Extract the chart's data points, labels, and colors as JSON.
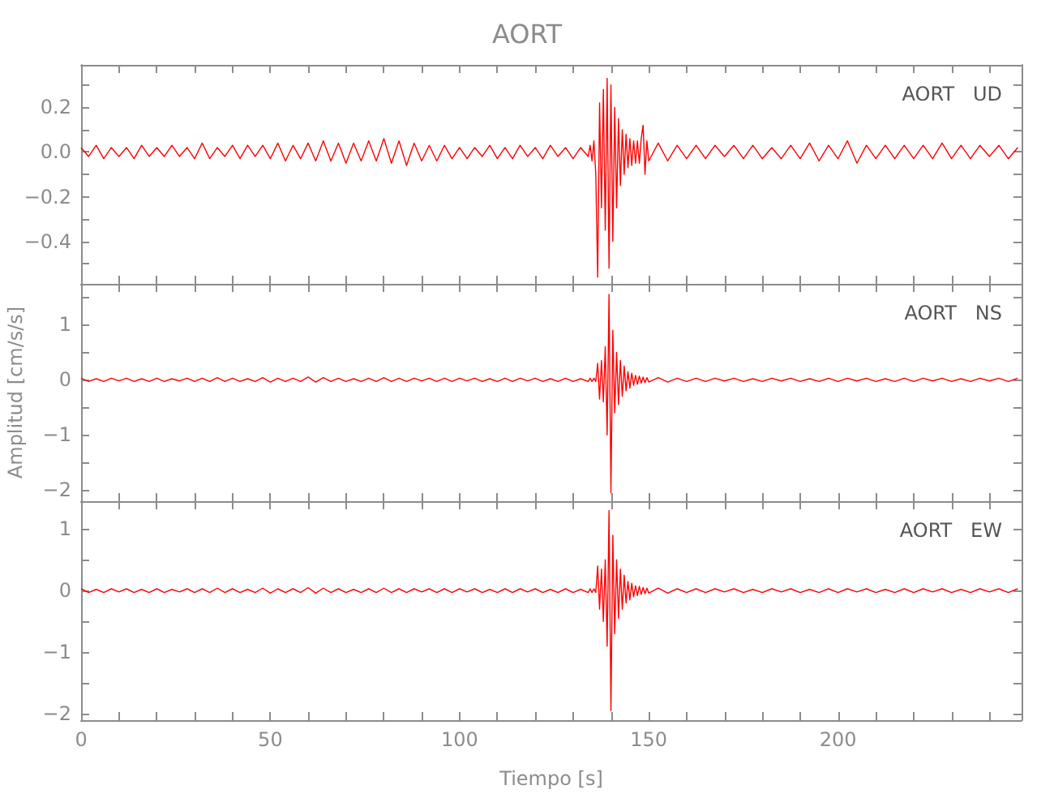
{
  "chart_data": [
    {
      "type": "line",
      "title": "AORT",
      "annotations": [
        "AORT   UD"
      ],
      "tick_labels": "y",
      "xlim": [
        0,
        248.5
      ],
      "xticks": [
        {
          "value": 0,
          "label": null
        },
        {
          "value": 10,
          "label": null
        },
        {
          "value": 20,
          "label": null
        },
        {
          "value": 30,
          "label": null
        },
        {
          "value": 40,
          "label": null
        },
        {
          "value": 50,
          "label": null
        },
        {
          "value": 60,
          "label": null
        },
        {
          "value": 70,
          "label": null
        },
        {
          "value": 80,
          "label": null
        },
        {
          "value": 90,
          "label": null
        },
        {
          "value": 100,
          "label": null
        },
        {
          "value": 110,
          "label": null
        },
        {
          "value": 120,
          "label": null
        },
        {
          "value": 130,
          "label": null
        },
        {
          "value": 140,
          "label": null
        },
        {
          "value": 150,
          "label": null
        },
        {
          "value": 160,
          "label": null
        },
        {
          "value": 170,
          "label": null
        },
        {
          "value": 180,
          "label": null
        },
        {
          "value": 190,
          "label": null
        },
        {
          "value": 200,
          "label": null
        },
        {
          "value": 210,
          "label": null
        },
        {
          "value": 220,
          "label": null
        },
        {
          "value": 230,
          "label": null
        },
        {
          "value": 240,
          "label": null
        }
      ],
      "ylim": [
        -0.59,
        0.39
      ],
      "yticks": [
        {
          "value": -0.5,
          "label": null
        },
        {
          "value": -0.4,
          "label": "−0.4"
        },
        {
          "value": -0.3,
          "label": null
        },
        {
          "value": -0.2,
          "label": "−0.2"
        },
        {
          "value": -0.1,
          "label": null
        },
        {
          "value": 0,
          "label": "0.0"
        },
        {
          "value": 0.1,
          "label": null
        },
        {
          "value": 0.2,
          "label": "0.2"
        },
        {
          "value": 0.3,
          "label": null
        }
      ],
      "x": [
        0,
        2,
        4,
        6,
        8,
        10,
        12,
        14,
        16,
        18,
        20,
        22,
        24,
        26,
        28,
        30,
        32,
        34,
        36,
        38,
        40,
        42,
        44,
        46,
        48,
        50,
        52,
        54,
        56,
        58,
        60,
        62,
        64,
        66,
        68,
        70,
        72,
        74,
        76,
        78,
        80,
        82,
        84,
        86,
        88,
        90,
        92,
        94,
        96,
        98,
        100,
        102,
        104,
        106,
        108,
        110,
        112,
        114,
        116,
        118,
        120,
        122,
        124,
        126,
        128,
        130,
        132,
        134,
        134.5,
        135,
        135.5,
        136,
        136.5,
        137,
        137.5,
        138,
        138.5,
        139,
        139.5,
        140,
        140.5,
        141,
        141.5,
        142,
        142.5,
        143,
        143.5,
        144,
        144.5,
        145,
        145.5,
        146,
        146.5,
        147,
        147.5,
        148,
        148.5,
        149,
        149.5,
        150,
        152.5,
        155,
        157.5,
        160,
        162.5,
        165,
        167.5,
        170,
        172.5,
        175,
        177.5,
        180,
        182.5,
        185,
        187.5,
        190,
        192.5,
        195,
        197.5,
        200,
        202.5,
        205,
        207.5,
        210,
        212.5,
        215,
        217.5,
        220,
        222.5,
        225,
        227.5,
        230,
        232.5,
        235,
        237.5,
        240,
        242.5,
        245,
        247.5
      ],
      "series": [
        {
          "color": "#ff0000",
          "values": [
            0.02,
            -0.02,
            0.03,
            -0.03,
            0.02,
            -0.02,
            0.02,
            -0.03,
            0.03,
            -0.02,
            0.02,
            -0.02,
            0.03,
            -0.02,
            0.02,
            -0.03,
            0.04,
            -0.03,
            0.02,
            -0.02,
            0.03,
            -0.03,
            0.03,
            -0.02,
            0.03,
            -0.03,
            0.04,
            -0.04,
            0.03,
            -0.03,
            0.04,
            -0.04,
            0.05,
            -0.04,
            0.04,
            -0.05,
            0.04,
            -0.04,
            0.05,
            -0.04,
            0.06,
            -0.05,
            0.05,
            -0.06,
            0.04,
            -0.04,
            0.03,
            -0.04,
            0.03,
            -0.03,
            0.02,
            -0.03,
            0.02,
            -0.02,
            0.03,
            -0.03,
            0.02,
            -0.03,
            0.03,
            -0.02,
            0.02,
            -0.03,
            0.03,
            -0.02,
            0.02,
            -0.03,
            0.02,
            -0.02,
            0.03,
            -0.04,
            0.05,
            -0.1,
            -0.56,
            0.22,
            -0.25,
            0.28,
            -0.35,
            0.33,
            -0.52,
            0.3,
            -0.4,
            0.2,
            -0.25,
            0.15,
            -0.15,
            0.1,
            -0.1,
            0.08,
            -0.07,
            0.06,
            -0.06,
            0.05,
            -0.05,
            0.05,
            -0.05,
            0.06,
            0.12,
            -0.1,
            0.05,
            -0.04,
            0.04,
            -0.04,
            0.03,
            -0.03,
            0.03,
            -0.03,
            0.03,
            -0.02,
            0.03,
            -0.03,
            0.03,
            -0.03,
            0.02,
            -0.03,
            0.03,
            -0.03,
            0.04,
            -0.04,
            0.03,
            -0.03,
            0.05,
            -0.05,
            0.03,
            -0.03,
            0.03,
            -0.03,
            0.03,
            -0.03,
            0.03,
            -0.03,
            0.04,
            -0.03,
            0.03,
            -0.03,
            0.03,
            -0.02,
            0.03,
            -0.03,
            0.02
          ]
        }
      ]
    },
    {
      "type": "line",
      "ylabel": "Amplitud [cm/s/s]",
      "annotations": [
        "AORT   NS"
      ],
      "tick_labels": "y",
      "xlim": [
        0,
        248.5
      ],
      "xticks": [
        {
          "value": 0,
          "label": null
        },
        {
          "value": 10,
          "label": null
        },
        {
          "value": 20,
          "label": null
        },
        {
          "value": 30,
          "label": null
        },
        {
          "value": 40,
          "label": null
        },
        {
          "value": 50,
          "label": null
        },
        {
          "value": 60,
          "label": null
        },
        {
          "value": 70,
          "label": null
        },
        {
          "value": 80,
          "label": null
        },
        {
          "value": 90,
          "label": null
        },
        {
          "value": 100,
          "label": null
        },
        {
          "value": 110,
          "label": null
        },
        {
          "value": 120,
          "label": null
        },
        {
          "value": 130,
          "label": null
        },
        {
          "value": 140,
          "label": null
        },
        {
          "value": 150,
          "label": null
        },
        {
          "value": 160,
          "label": null
        },
        {
          "value": 170,
          "label": null
        },
        {
          "value": 180,
          "label": null
        },
        {
          "value": 190,
          "label": null
        },
        {
          "value": 200,
          "label": null
        },
        {
          "value": 210,
          "label": null
        },
        {
          "value": 220,
          "label": null
        },
        {
          "value": 230,
          "label": null
        },
        {
          "value": 240,
          "label": null
        }
      ],
      "ylim": [
        -2.2,
        1.74
      ],
      "yticks": [
        {
          "value": -2,
          "label": "−2"
        },
        {
          "value": -1.5,
          "label": null
        },
        {
          "value": -1,
          "label": "−1"
        },
        {
          "value": -0.5,
          "label": null
        },
        {
          "value": 0,
          "label": "0"
        },
        {
          "value": 0.5,
          "label": null
        },
        {
          "value": 1,
          "label": "1"
        },
        {
          "value": 1.5,
          "label": null
        }
      ],
      "x": [
        0,
        2,
        4,
        6,
        8,
        10,
        12,
        14,
        16,
        18,
        20,
        22,
        24,
        26,
        28,
        30,
        32,
        34,
        36,
        38,
        40,
        42,
        44,
        46,
        48,
        50,
        52,
        54,
        56,
        58,
        60,
        62,
        64,
        66,
        68,
        70,
        72,
        74,
        76,
        78,
        80,
        82,
        84,
        86,
        88,
        90,
        92,
        94,
        96,
        98,
        100,
        102,
        104,
        106,
        108,
        110,
        112,
        114,
        116,
        118,
        120,
        122,
        124,
        126,
        128,
        130,
        132,
        134,
        134.5,
        135,
        135.5,
        136,
        136.5,
        137,
        137.5,
        138,
        138.5,
        139,
        139.5,
        140,
        140.5,
        141,
        141.5,
        142,
        142.5,
        143,
        143.5,
        144,
        144.5,
        145,
        145.5,
        146,
        146.5,
        147,
        147.5,
        148,
        148.5,
        149,
        149.5,
        150,
        152.5,
        155,
        157.5,
        160,
        162.5,
        165,
        167.5,
        170,
        172.5,
        175,
        177.5,
        180,
        182.5,
        185,
        187.5,
        190,
        192.5,
        195,
        197.5,
        200,
        202.5,
        205,
        207.5,
        210,
        212.5,
        215,
        217.5,
        220,
        222.5,
        225,
        227.5,
        230,
        232.5,
        235,
        237.5,
        240,
        242.5,
        245,
        247.5
      ],
      "series": [
        {
          "color": "#ff0000",
          "values": [
            0.03,
            -0.03,
            0.02,
            -0.03,
            0.03,
            -0.02,
            0.03,
            -0.03,
            0.02,
            -0.03,
            0.03,
            -0.03,
            0.02,
            -0.02,
            0.03,
            -0.03,
            0.03,
            -0.03,
            0.04,
            -0.03,
            0.03,
            -0.03,
            0.02,
            -0.03,
            0.04,
            -0.04,
            0.03,
            -0.03,
            0.03,
            -0.03,
            0.05,
            -0.04,
            0.04,
            -0.03,
            0.03,
            -0.03,
            0.02,
            -0.03,
            0.03,
            -0.03,
            0.04,
            -0.03,
            0.03,
            -0.03,
            0.03,
            -0.02,
            0.03,
            -0.03,
            0.03,
            -0.03,
            0.03,
            -0.02,
            0.03,
            -0.03,
            0.02,
            -0.03,
            0.03,
            -0.03,
            0.03,
            -0.02,
            0.03,
            -0.03,
            0.02,
            -0.03,
            0.03,
            -0.03,
            0.02,
            -0.03,
            0.03,
            -0.03,
            0.03,
            -0.03,
            0.3,
            -0.35,
            0.35,
            -0.4,
            0.6,
            -1.0,
            1.55,
            -2.05,
            0.9,
            -0.6,
            0.5,
            -0.45,
            0.35,
            -0.3,
            0.25,
            -0.2,
            0.15,
            -0.15,
            0.12,
            -0.1,
            0.08,
            -0.08,
            0.07,
            -0.06,
            0.05,
            -0.05,
            0.04,
            -0.04,
            0.04,
            -0.04,
            0.03,
            -0.03,
            0.03,
            -0.03,
            0.03,
            -0.02,
            0.03,
            -0.03,
            0.02,
            -0.03,
            0.03,
            -0.02,
            0.03,
            -0.03,
            0.02,
            -0.03,
            0.03,
            -0.03,
            0.03,
            -0.02,
            0.03,
            -0.03,
            0.02,
            -0.03,
            0.03,
            -0.03,
            0.03,
            -0.02,
            0.03,
            -0.03,
            0.02,
            -0.03,
            0.03,
            -0.02,
            0.03,
            -0.03,
            0.03
          ]
        }
      ]
    },
    {
      "type": "line",
      "xlabel": "Tiempo [s]",
      "annotations": [
        "AORT   EW"
      ],
      "xlim": [
        0,
        248.5
      ],
      "xticks": [
        0,
        {
          "value": 10,
          "label": null
        },
        {
          "value": 20,
          "label": null
        },
        {
          "value": 30,
          "label": null
        },
        {
          "value": 40,
          "label": null
        },
        50,
        {
          "value": 60,
          "label": null
        },
        {
          "value": 70,
          "label": null
        },
        {
          "value": 80,
          "label": null
        },
        {
          "value": 90,
          "label": null
        },
        100,
        {
          "value": 110,
          "label": null
        },
        {
          "value": 120,
          "label": null
        },
        {
          "value": 130,
          "label": null
        },
        {
          "value": 140,
          "label": null
        },
        150,
        {
          "value": 160,
          "label": null
        },
        {
          "value": 170,
          "label": null
        },
        {
          "value": 180,
          "label": null
        },
        {
          "value": 190,
          "label": null
        },
        200,
        {
          "value": 210,
          "label": null
        },
        {
          "value": 220,
          "label": null
        },
        {
          "value": 230,
          "label": null
        },
        {
          "value": 240,
          "label": null
        }
      ],
      "ylim": [
        -2.1,
        1.45
      ],
      "yticks": [
        {
          "value": -2,
          "label": "−2"
        },
        {
          "value": -1.5,
          "label": null
        },
        {
          "value": -1,
          "label": "−1"
        },
        {
          "value": -0.5,
          "label": null
        },
        {
          "value": 0,
          "label": "0"
        },
        {
          "value": 0.5,
          "label": null
        },
        {
          "value": 1,
          "label": "1"
        }
      ],
      "x": [
        0,
        2,
        4,
        6,
        8,
        10,
        12,
        14,
        16,
        18,
        20,
        22,
        24,
        26,
        28,
        30,
        32,
        34,
        36,
        38,
        40,
        42,
        44,
        46,
        48,
        50,
        52,
        54,
        56,
        58,
        60,
        62,
        64,
        66,
        68,
        70,
        72,
        74,
        76,
        78,
        80,
        82,
        84,
        86,
        88,
        90,
        92,
        94,
        96,
        98,
        100,
        102,
        104,
        106,
        108,
        110,
        112,
        114,
        116,
        118,
        120,
        122,
        124,
        126,
        128,
        130,
        132,
        134,
        134.5,
        135,
        135.5,
        136,
        136.5,
        137,
        137.5,
        138,
        138.5,
        139,
        139.5,
        140,
        140.5,
        141,
        141.5,
        142,
        142.5,
        143,
        143.5,
        144,
        144.5,
        145,
        145.5,
        146,
        146.5,
        147,
        147.5,
        148,
        148.5,
        149,
        149.5,
        150,
        152.5,
        155,
        157.5,
        160,
        162.5,
        165,
        167.5,
        170,
        172.5,
        175,
        177.5,
        180,
        182.5,
        185,
        187.5,
        190,
        192.5,
        195,
        197.5,
        200,
        202.5,
        205,
        207.5,
        210,
        212.5,
        215,
        217.5,
        220,
        222.5,
        225,
        227.5,
        230,
        232.5,
        235,
        237.5,
        240,
        242.5,
        245,
        247.5
      ],
      "series": [
        {
          "color": "#ff0000",
          "values": [
            0.03,
            -0.03,
            0.02,
            -0.03,
            0.03,
            -0.02,
            0.03,
            -0.03,
            0.02,
            -0.03,
            0.03,
            -0.03,
            0.02,
            -0.02,
            0.03,
            -0.03,
            0.03,
            -0.03,
            0.04,
            -0.03,
            0.03,
            -0.03,
            0.02,
            -0.03,
            0.04,
            -0.04,
            0.03,
            -0.03,
            0.03,
            -0.03,
            0.05,
            -0.04,
            0.04,
            -0.03,
            0.03,
            -0.03,
            0.02,
            -0.03,
            0.03,
            -0.03,
            0.04,
            -0.03,
            0.03,
            -0.03,
            0.03,
            -0.02,
            0.03,
            -0.03,
            0.03,
            -0.03,
            0.03,
            -0.02,
            0.03,
            -0.03,
            0.02,
            -0.03,
            0.03,
            -0.03,
            0.03,
            -0.02,
            0.03,
            -0.03,
            0.02,
            -0.03,
            0.03,
            -0.03,
            0.02,
            -0.03,
            0.03,
            -0.03,
            0.03,
            -0.03,
            0.4,
            -0.3,
            0.35,
            -0.5,
            0.5,
            -0.9,
            1.3,
            -1.95,
            0.9,
            -0.7,
            0.5,
            -0.45,
            0.35,
            -0.3,
            0.25,
            -0.2,
            0.15,
            -0.15,
            0.12,
            -0.1,
            0.08,
            -0.08,
            0.07,
            -0.06,
            0.05,
            -0.05,
            0.04,
            -0.04,
            0.04,
            -0.04,
            0.03,
            -0.03,
            0.03,
            -0.03,
            0.03,
            -0.02,
            0.03,
            -0.03,
            0.02,
            -0.03,
            0.03,
            -0.02,
            0.03,
            -0.03,
            0.02,
            -0.03,
            0.03,
            -0.03,
            0.03,
            -0.02,
            0.03,
            -0.03,
            0.02,
            -0.03,
            0.03,
            -0.03,
            0.03,
            -0.02,
            0.03,
            -0.03,
            0.02,
            -0.03,
            0.03,
            -0.02,
            0.03,
            -0.03,
            0.03
          ]
        }
      ]
    }
  ]
}
